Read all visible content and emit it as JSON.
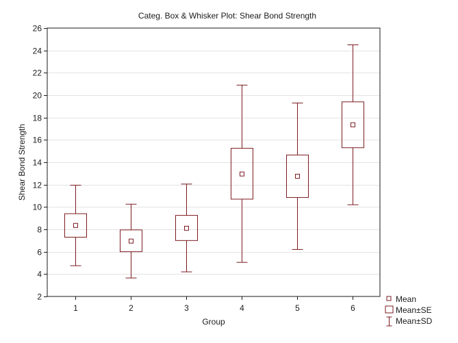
{
  "chart_data": {
    "type": "box",
    "title": "Categ. Box & Whisker Plot: Shear Bond Strength",
    "xlabel": "Group",
    "ylabel": "Shear Bond Strength",
    "categories": [
      "1",
      "2",
      "3",
      "4",
      "5",
      "6"
    ],
    "ylim": [
      2,
      26
    ],
    "yticks": [
      "2",
      "4",
      "6",
      "8",
      "10",
      "12",
      "14",
      "16",
      "18",
      "20",
      "22",
      "24",
      "26"
    ],
    "grid": "horizontal",
    "legend_position": "bottom-right, outside plot",
    "legend": [
      "Mean",
      "Mean±SE",
      "Mean±SD"
    ],
    "color": "#7b1a1f",
    "series": [
      {
        "category": "1",
        "mean": 8.35,
        "se_low": 7.3,
        "se_high": 9.4,
        "sd_low": 4.75,
        "sd_high": 11.95
      },
      {
        "category": "2",
        "mean": 6.95,
        "se_low": 6.0,
        "se_high": 7.95,
        "sd_low": 3.65,
        "sd_high": 10.25
      },
      {
        "category": "3",
        "mean": 8.1,
        "se_low": 7.0,
        "se_high": 9.25,
        "sd_low": 4.2,
        "sd_high": 12.05
      },
      {
        "category": "4",
        "mean": 12.95,
        "se_low": 10.7,
        "se_high": 15.25,
        "sd_low": 5.05,
        "sd_high": 20.9
      },
      {
        "category": "5",
        "mean": 12.75,
        "se_low": 10.85,
        "se_high": 14.65,
        "sd_low": 6.2,
        "sd_high": 19.3
      },
      {
        "category": "6",
        "mean": 17.35,
        "se_low": 15.3,
        "se_high": 19.4,
        "sd_low": 10.2,
        "sd_high": 24.5
      }
    ]
  }
}
